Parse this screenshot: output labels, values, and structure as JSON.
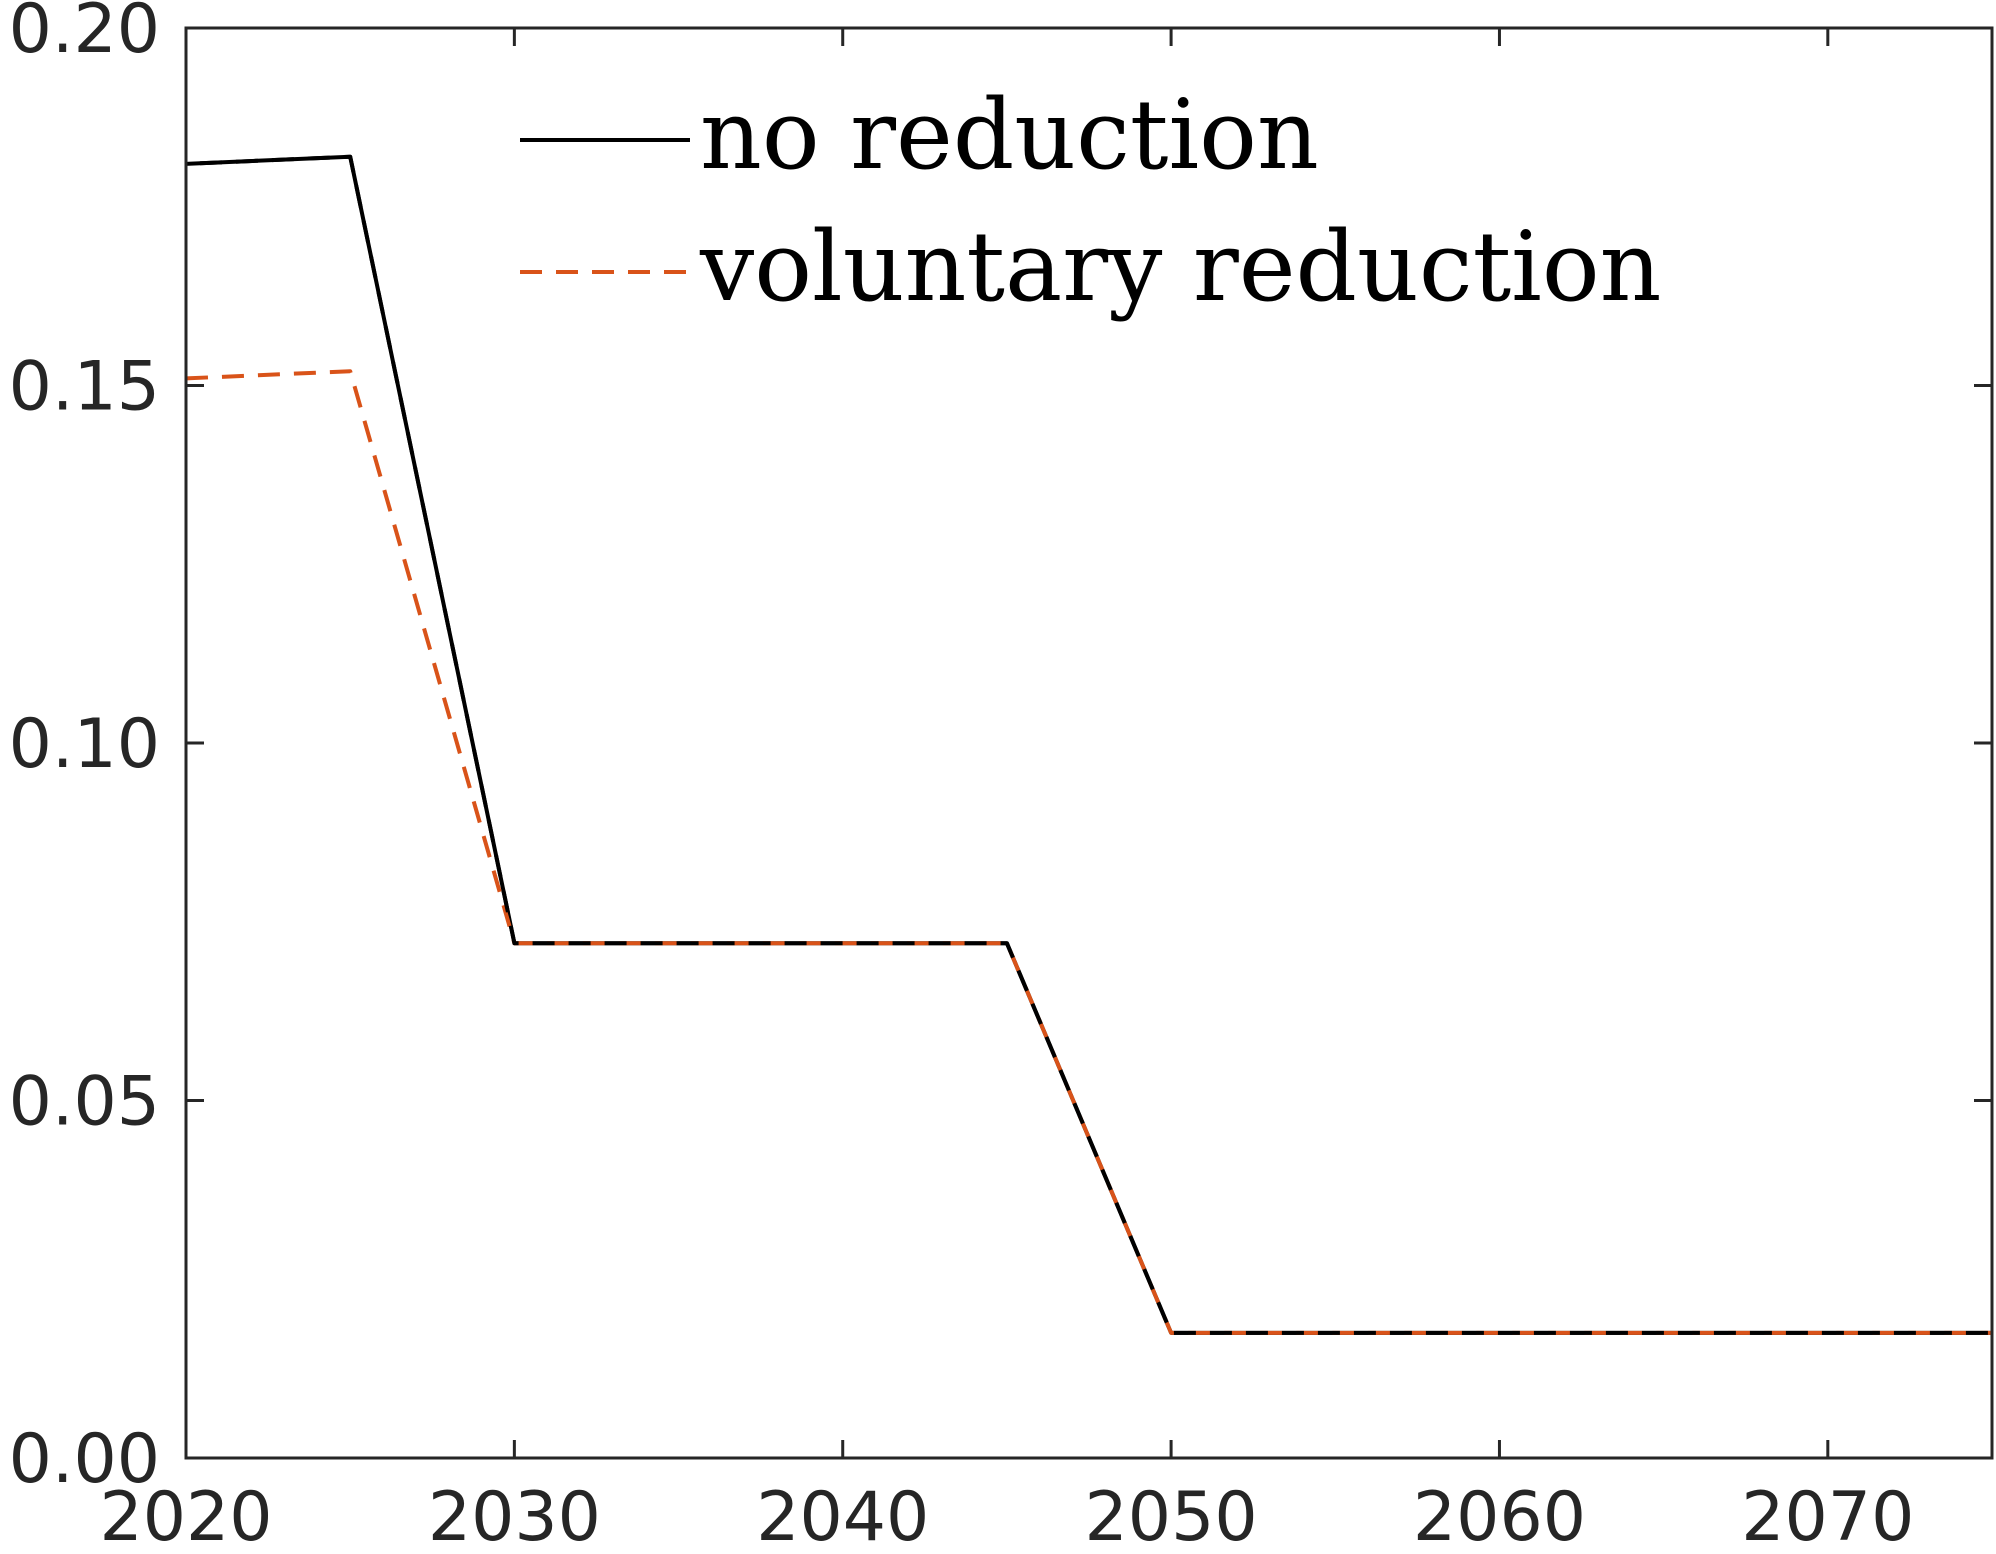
{
  "chart_data": {
    "type": "line",
    "title": "",
    "xlabel": "",
    "ylabel": "",
    "xlim": [
      2020,
      2075
    ],
    "ylim": [
      0,
      0.2
    ],
    "grid": false,
    "legend_position": "top",
    "x_ticks": [
      2020,
      2030,
      2040,
      2050,
      2060,
      2070
    ],
    "x_tick_labels": [
      "2020",
      "2030",
      "2040",
      "2050",
      "2060",
      "2070"
    ],
    "y_ticks": [
      0,
      0.05,
      0.1,
      0.15,
      0.2
    ],
    "y_tick_labels": [
      "0.00",
      "0.05",
      "0.10",
      "0.15",
      "0.20"
    ],
    "series": [
      {
        "name": "no reduction",
        "color": "#000000",
        "line_style": "solid",
        "points": [
          [
            2020,
            0.181
          ],
          [
            2025,
            0.182
          ],
          [
            2030,
            0.072
          ],
          [
            2045,
            0.072
          ],
          [
            2050,
            0.0175
          ],
          [
            2075,
            0.0175
          ]
        ]
      },
      {
        "name": "voluntary reduction",
        "color": "#D95319",
        "line_style": "dashed",
        "points": [
          [
            2020,
            0.151
          ],
          [
            2025,
            0.152
          ],
          [
            2030,
            0.072
          ],
          [
            2045,
            0.072
          ],
          [
            2050,
            0.0175
          ],
          [
            2075,
            0.0175
          ]
        ]
      }
    ]
  }
}
